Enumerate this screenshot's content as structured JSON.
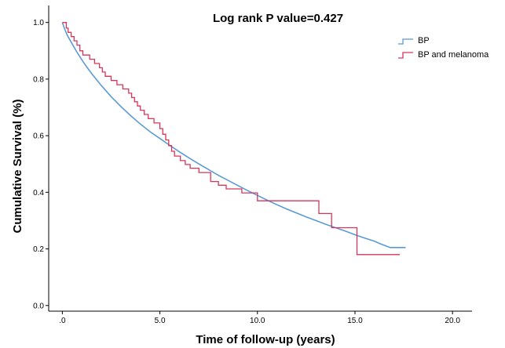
{
  "chart_data": {
    "type": "line",
    "subtype": "kaplan-meier step",
    "title": "Log rank P value=0.427",
    "xlabel": "Time of follow-up (years)",
    "ylabel": "Cumulative Survival (%)",
    "xlim": [
      -0.7,
      21
    ],
    "ylim": [
      -0.02,
      1.06
    ],
    "x_ticks": [
      ".0",
      "5.0",
      "10.0",
      "15.0",
      "20.0"
    ],
    "x_tick_values": [
      0,
      5,
      10,
      15,
      20
    ],
    "y_ticks": [
      "0.0",
      "0.2",
      "0.4",
      "0.6",
      "0.8",
      "1.0"
    ],
    "y_tick_values": [
      0,
      0.2,
      0.4,
      0.6,
      0.8,
      1.0
    ],
    "grid": false,
    "legend_position": "top-right",
    "series": [
      {
        "name": "BP",
        "color": "#5b9bd5",
        "points": [
          [
            0,
            1.0
          ],
          [
            0.1,
            0.98
          ],
          [
            0.25,
            0.955
          ],
          [
            0.5,
            0.925
          ],
          [
            0.75,
            0.895
          ],
          [
            1.0,
            0.868
          ],
          [
            1.25,
            0.843
          ],
          [
            1.5,
            0.82
          ],
          [
            1.75,
            0.798
          ],
          [
            2.0,
            0.777
          ],
          [
            2.5,
            0.738
          ],
          [
            3.0,
            0.703
          ],
          [
            3.5,
            0.671
          ],
          [
            4.0,
            0.641
          ],
          [
            4.5,
            0.614
          ],
          [
            5.0,
            0.59
          ],
          [
            5.5,
            0.566
          ],
          [
            6.0,
            0.543
          ],
          [
            6.5,
            0.521
          ],
          [
            7.0,
            0.5
          ],
          [
            7.5,
            0.48
          ],
          [
            8.0,
            0.46
          ],
          [
            8.5,
            0.442
          ],
          [
            9.0,
            0.424
          ],
          [
            9.5,
            0.406
          ],
          [
            10.0,
            0.389
          ],
          [
            10.5,
            0.372
          ],
          [
            11.0,
            0.356
          ],
          [
            11.5,
            0.341
          ],
          [
            12.0,
            0.327
          ],
          [
            12.5,
            0.313
          ],
          [
            13.0,
            0.3
          ],
          [
            13.5,
            0.287
          ],
          [
            14.0,
            0.275
          ],
          [
            14.5,
            0.263
          ],
          [
            15.0,
            0.25
          ],
          [
            15.5,
            0.238
          ],
          [
            16.0,
            0.227
          ],
          [
            16.3,
            0.218
          ],
          [
            16.6,
            0.21
          ],
          [
            16.8,
            0.205
          ],
          [
            17.6,
            0.205
          ]
        ]
      },
      {
        "name": "BP and melanoma",
        "color": "#d6365a",
        "steps": [
          [
            0,
            1.0
          ],
          [
            0.2,
            0.98
          ],
          [
            0.3,
            0.965
          ],
          [
            0.45,
            0.95
          ],
          [
            0.6,
            0.935
          ],
          [
            0.75,
            0.92
          ],
          [
            0.9,
            0.9
          ],
          [
            1.05,
            0.885
          ],
          [
            1.4,
            0.87
          ],
          [
            1.65,
            0.855
          ],
          [
            1.9,
            0.84
          ],
          [
            2.05,
            0.825
          ],
          [
            2.2,
            0.81
          ],
          [
            2.5,
            0.795
          ],
          [
            2.8,
            0.78
          ],
          [
            3.1,
            0.765
          ],
          [
            3.4,
            0.75
          ],
          [
            3.55,
            0.735
          ],
          [
            3.7,
            0.72
          ],
          [
            3.85,
            0.705
          ],
          [
            4.0,
            0.69
          ],
          [
            4.2,
            0.675
          ],
          [
            4.4,
            0.66
          ],
          [
            4.7,
            0.645
          ],
          [
            5.0,
            0.625
          ],
          [
            5.15,
            0.605
          ],
          [
            5.3,
            0.585
          ],
          [
            5.45,
            0.565
          ],
          [
            5.6,
            0.545
          ],
          [
            5.75,
            0.528
          ],
          [
            6.05,
            0.512
          ],
          [
            6.3,
            0.498
          ],
          [
            6.55,
            0.485
          ],
          [
            7.0,
            0.47
          ],
          [
            7.6,
            0.438
          ],
          [
            8.0,
            0.425
          ],
          [
            8.4,
            0.412
          ],
          [
            9.2,
            0.398
          ],
          [
            10.0,
            0.37
          ],
          [
            13.15,
            0.325
          ],
          [
            13.8,
            0.275
          ],
          [
            15.1,
            0.18
          ],
          [
            17.3,
            0.18
          ]
        ]
      }
    ]
  }
}
